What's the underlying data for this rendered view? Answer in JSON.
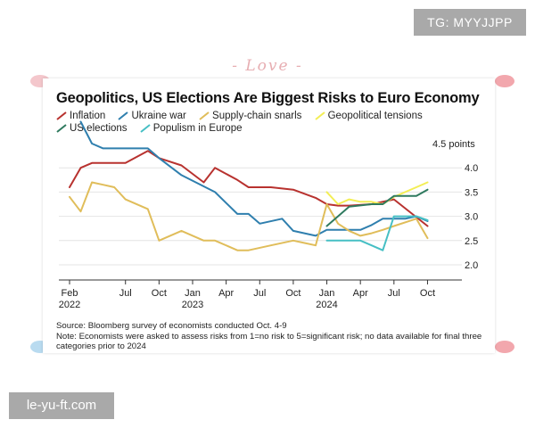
{
  "watermarks": {
    "top_right": "TG: MYYJJPP",
    "bottom_left": "le-yu-ft.com"
  },
  "decoration": {
    "text": "- Love -"
  },
  "colors": {
    "Inflation": "#b8322f",
    "Ukraine war": "#2f7fae",
    "Supply-chain snarls": "#e0bd5a",
    "Geopolitical tensions": "#f3ee55",
    "US elections": "#2f7a5f",
    "Populism in Europe": "#46bfc4"
  },
  "chart_data": {
    "type": "line",
    "title": "Geopolitics, US Elections Are Biggest Risks to Euro Economy",
    "ylabel": "4.5 points",
    "ylim": [
      2.0,
      4.5
    ],
    "yticks": [
      2.0,
      2.5,
      3.0,
      3.5,
      4.0
    ],
    "xlim": [
      0,
      33
    ],
    "xticks": [
      {
        "x": 0,
        "label": "Feb",
        "year": "2022"
      },
      {
        "x": 5,
        "label": "Jul",
        "year": ""
      },
      {
        "x": 8,
        "label": "Oct",
        "year": ""
      },
      {
        "x": 11,
        "label": "Jan",
        "year": "2023"
      },
      {
        "x": 14,
        "label": "Apr",
        "year": ""
      },
      {
        "x": 17,
        "label": "Jul",
        "year": ""
      },
      {
        "x": 20,
        "label": "Oct",
        "year": ""
      },
      {
        "x": 23,
        "label": "Jan",
        "year": "2024"
      },
      {
        "x": 26,
        "label": "Apr",
        "year": ""
      },
      {
        "x": 29,
        "label": "Jul",
        "year": ""
      },
      {
        "x": 32,
        "label": "Oct",
        "year": ""
      }
    ],
    "legend_rows": [
      [
        "Inflation",
        "Ukraine war",
        "Supply-chain snarls",
        "Geopolitical tensions"
      ],
      [
        "US elections",
        "Populism in Europe"
      ]
    ],
    "series": [
      {
        "name": "Inflation",
        "x": [
          0,
          1,
          2,
          5,
          7,
          8,
          10,
          12,
          13,
          15,
          16,
          18,
          20,
          22,
          23,
          24,
          25,
          27,
          29,
          32
        ],
        "values": [
          3.6,
          4.0,
          4.1,
          4.1,
          4.35,
          4.2,
          4.05,
          3.7,
          4.0,
          3.75,
          3.6,
          3.6,
          3.55,
          3.38,
          3.25,
          3.22,
          3.22,
          3.25,
          3.35,
          2.8
        ]
      },
      {
        "name": "Ukraine war",
        "x": [
          1,
          2,
          3,
          6,
          7,
          8,
          10,
          13,
          15,
          16,
          17,
          19,
          20,
          22,
          23,
          24,
          25,
          26,
          27,
          28,
          29,
          30,
          31,
          32
        ],
        "values": [
          4.95,
          4.5,
          4.4,
          4.4,
          4.4,
          4.2,
          3.85,
          3.5,
          3.05,
          3.05,
          2.85,
          2.95,
          2.7,
          2.6,
          2.72,
          2.72,
          2.72,
          2.72,
          2.82,
          2.95,
          2.95,
          2.95,
          3.0,
          2.9
        ]
      },
      {
        "name": "Supply-chain snarls",
        "x": [
          0,
          1,
          2,
          3,
          4,
          5,
          7,
          8,
          10,
          12,
          13,
          15,
          16,
          18,
          20,
          21,
          22,
          23,
          24,
          25,
          26,
          27,
          28,
          29,
          31,
          32
        ],
        "values": [
          3.4,
          3.1,
          3.7,
          3.65,
          3.6,
          3.35,
          3.15,
          2.5,
          2.7,
          2.5,
          2.5,
          2.3,
          2.3,
          2.4,
          2.5,
          2.45,
          2.4,
          3.25,
          2.85,
          2.7,
          2.6,
          2.65,
          2.72,
          2.8,
          2.95,
          2.55
        ]
      },
      {
        "name": "Geopolitical tensions",
        "x": [
          23,
          24,
          25,
          26,
          27,
          28,
          29,
          31,
          32
        ],
        "values": [
          3.5,
          3.25,
          3.35,
          3.3,
          3.3,
          3.25,
          3.4,
          3.6,
          3.7
        ]
      },
      {
        "name": "US elections",
        "x": [
          23,
          25,
          27,
          28,
          29,
          31,
          32
        ],
        "values": [
          2.8,
          3.2,
          3.25,
          3.25,
          3.42,
          3.42,
          3.55
        ]
      },
      {
        "name": "Populism in Europe",
        "x": [
          23,
          26,
          27,
          28,
          29,
          31,
          32
        ],
        "values": [
          2.5,
          2.5,
          2.4,
          2.3,
          3.0,
          3.0,
          2.92
        ]
      }
    ],
    "source": "Source: Bloomberg survey of economists conducted Oct. 4-9",
    "note": "Note: Economists were asked to assess risks from 1=no risk to 5=significant risk; no data available for final three categories prior to 2024"
  }
}
